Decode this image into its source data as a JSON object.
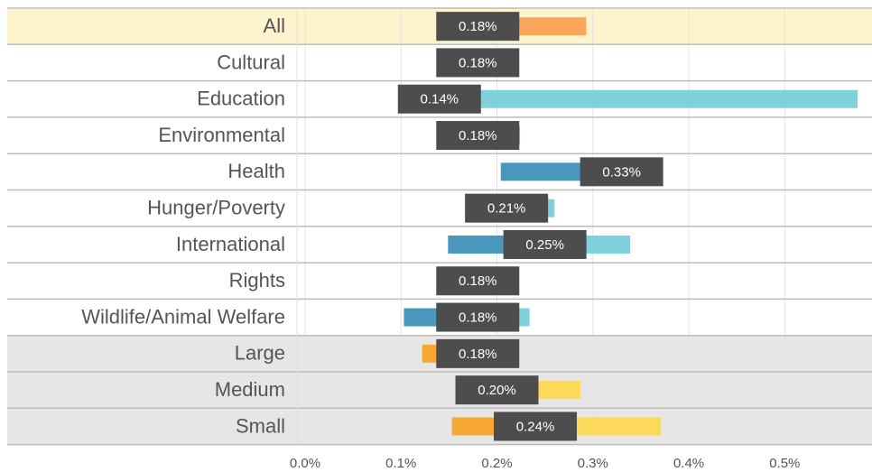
{
  "chart_data": {
    "type": "range",
    "categories": [
      "All",
      "Cultural",
      "Education",
      "Environmental",
      "Health",
      "Hunger/Poverty",
      "International",
      "Rights",
      "Wildlife/Animal Welfare",
      "Large",
      "Medium",
      "Small"
    ],
    "values": [
      0.18,
      0.18,
      0.14,
      0.18,
      0.33,
      0.21,
      0.25,
      0.18,
      0.18,
      0.18,
      0.2,
      0.24
    ],
    "value_labels": [
      "0.18%",
      "0.18%",
      "0.14%",
      "0.18%",
      "0.33%",
      "0.21%",
      "0.25%",
      "0.18%",
      "0.18%",
      "0.18%",
      "0.20%",
      "0.24%"
    ],
    "lows": [
      0.18,
      0.18,
      0.14,
      0.18,
      0.204,
      0.21,
      0.149,
      0.18,
      0.103,
      0.122,
      0.2,
      0.153
    ],
    "highs": [
      0.293,
      0.217,
      0.576,
      0.224,
      0.369,
      0.26,
      0.339,
      0.18,
      0.234,
      0.18,
      0.287,
      0.371
    ],
    "low_colors": [
      "#f9a65a",
      "#4a97bd",
      "#4a97bd",
      "#4a97bd",
      "#4a97bd",
      "#4a97bd",
      "#4a97bd",
      "#4a97bd",
      "#4a97bd",
      "#f7a833",
      "#f7a833",
      "#f7a833"
    ],
    "high_colors": [
      "#f9a65a",
      "#7fd1dc",
      "#7fd1dc",
      "#7fd1dc",
      "#7fd1dc",
      "#7fd1dc",
      "#7fd1dc",
      "#7fd1dc",
      "#7fd1dc",
      "#fdd95a",
      "#fdd95a",
      "#fdd95a"
    ],
    "row_colors": [
      "#fdf3cd",
      "#ffffff",
      "#ffffff",
      "#ffffff",
      "#ffffff",
      "#ffffff",
      "#ffffff",
      "#ffffff",
      "#ffffff",
      "#e6e6e6",
      "#e6e6e6",
      "#e6e6e6"
    ],
    "xlim": [
      0,
      0.591
    ],
    "xticks": [
      {
        "value": 0,
        "label": "0.0%"
      },
      {
        "value": 0.1,
        "label": "0.1%"
      },
      {
        "value": 0.2,
        "label": "0.2%"
      },
      {
        "value": 0.3,
        "label": "0.3%"
      },
      {
        "value": 0.4,
        "label": "0.4%"
      },
      {
        "value": 0.5,
        "label": "0.5%"
      }
    ],
    "grid": true
  }
}
